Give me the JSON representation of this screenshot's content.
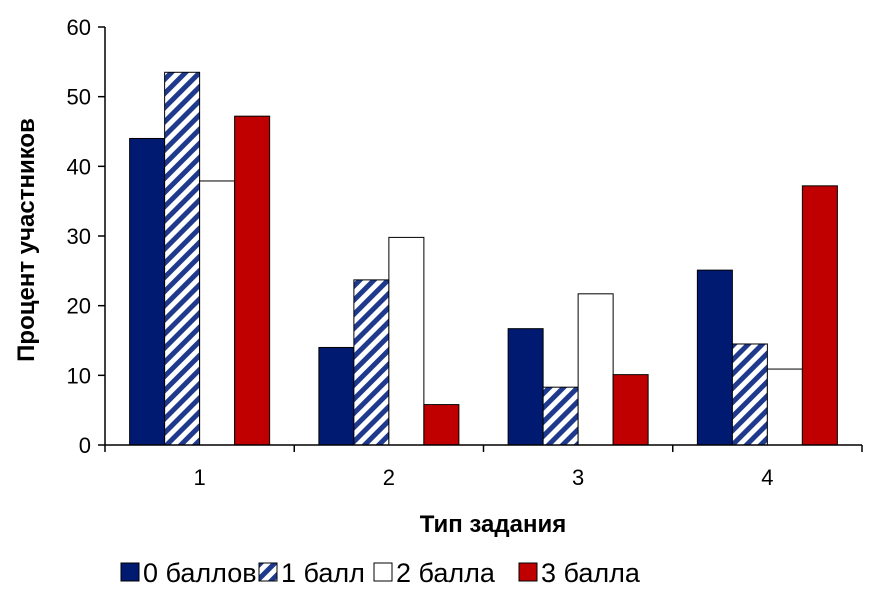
{
  "chart_data": {
    "type": "bar",
    "title": "",
    "xlabel": "Тип задания",
    "ylabel": "Процент участников",
    "categories": [
      "1",
      "2",
      "3",
      "4"
    ],
    "ylim": [
      0,
      60
    ],
    "yticks": [
      "0",
      "10",
      "20",
      "30",
      "40",
      "50",
      "60"
    ],
    "grid": false,
    "legend_position": "bottom",
    "series": [
      {
        "name": "0 баллов",
        "values": [
          44,
          14,
          16.7,
          25.1
        ],
        "fill": "#001a72",
        "pattern": "solid"
      },
      {
        "name": "1 балл",
        "values": [
          53.5,
          23.7,
          8.3,
          14.5
        ],
        "fill": "#1f3a8c",
        "pattern": "hatch"
      },
      {
        "name": "2 балла",
        "values": [
          37.9,
          29.8,
          21.7,
          10.9
        ],
        "fill": "#ffffff",
        "pattern": "solid"
      },
      {
        "name": "3 балла",
        "values": [
          47.2,
          5.8,
          10.1,
          37.2
        ],
        "fill": "#c00000",
        "pattern": "solid"
      }
    ]
  }
}
